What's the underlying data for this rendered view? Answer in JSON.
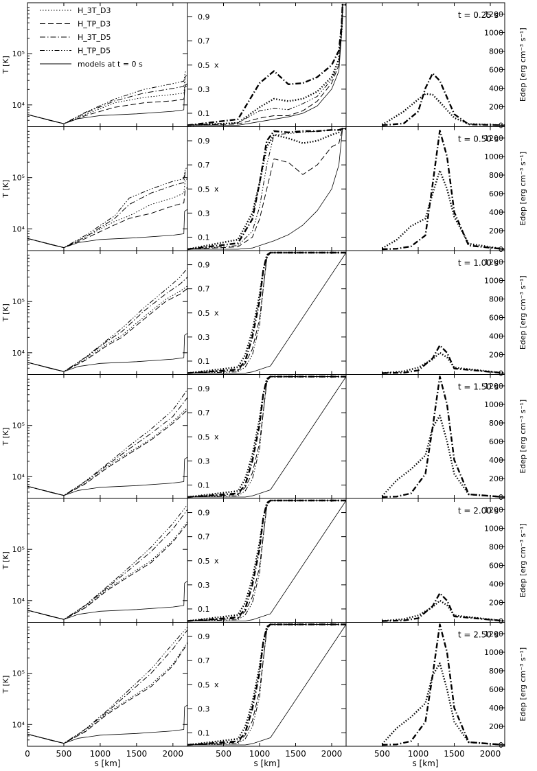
{
  "figure": {
    "y_left_label": "T [K]",
    "y_mid_label": "x",
    "y_right_label": "Edep [erg cm⁻³ s⁻¹]",
    "x_label": "s [km]",
    "x_ticks": [
      "0",
      "500",
      "1000",
      "1500",
      "2000"
    ],
    "x_ticks_mid": [
      "500",
      "1000",
      "1500",
      "2000"
    ],
    "T_ticks": [
      "10⁴",
      "10⁵"
    ],
    "x_fraction_ticks": [
      "0.1",
      "0.3",
      "0.5",
      "0.7",
      "0.9"
    ],
    "edep_ticks": [
      "0",
      "200",
      "400",
      "600",
      "800",
      "1000",
      "1200"
    ]
  },
  "legend": [
    {
      "label": "H_3T_D3",
      "style": "dotted"
    },
    {
      "label": "H_TP_D3",
      "style": "dashed"
    },
    {
      "label": "H_3T_D5",
      "style": "dashdot"
    },
    {
      "label": "H_TP_D5",
      "style": "dashdotdotdot"
    },
    {
      "label": "models at t = 0 s",
      "style": "solid"
    }
  ],
  "panels": [
    {
      "time_label": "t = 0.25 s"
    },
    {
      "time_label": "t = 0.50 s"
    },
    {
      "time_label": "t = 1.00 s"
    },
    {
      "time_label": "t = 1.50 s"
    },
    {
      "time_label": "t = 2.00 s"
    },
    {
      "time_label": "t = 2.50 s"
    }
  ],
  "chart_data": {
    "type": "line",
    "columns": [
      "temperature",
      "ionization_fraction",
      "energy_deposition"
    ],
    "xlabel": "s [km]",
    "xlim": [
      0,
      2200
    ],
    "temperature": {
      "ylabel": "T [K]",
      "scale": "log",
      "ylim": [
        4000,
        900000
      ]
    },
    "ionization_fraction": {
      "ylabel": "x",
      "ylim": [
        0,
        1.0
      ]
    },
    "energy_deposition": {
      "ylabel": "Edep [erg cm⁻³ s⁻¹]",
      "ylim": [
        0,
        1300
      ]
    },
    "initial_model_T": {
      "s": [
        0,
        300,
        500,
        700,
        1000,
        1500,
        2000,
        2150,
        2160,
        2200
      ],
      "T": [
        6500,
        5000,
        4300,
        5400,
        6200,
        6700,
        7500,
        8000,
        22000,
        24000
      ]
    },
    "times": [
      {
        "t": 0.25,
        "T": {
          "s": [
            0,
            500,
            800,
            1200,
            1600,
            2000,
            2150,
            2170,
            2200
          ],
          "H_3T_D3": [
            6500,
            4300,
            6500,
            11000,
            14000,
            16000,
            17000,
            28000,
            30000
          ],
          "H_TP_D3": [
            6500,
            4300,
            6200,
            9000,
            11000,
            12000,
            13000,
            24000,
            26000
          ],
          "H_3T_D5": [
            6500,
            4300,
            7000,
            12000,
            17000,
            21000,
            23000,
            36000,
            38000
          ],
          "H_TP_D5": [
            6500,
            4300,
            7200,
            13000,
            20000,
            26000,
            29000,
            44000,
            46000
          ]
        },
        "x": {
          "s": [
            0,
            700,
            1000,
            1200,
            1400,
            1600,
            1800,
            2000,
            2100,
            2140,
            2150,
            2200
          ],
          "H_3T_D3": [
            0.0,
            0.02,
            0.15,
            0.22,
            0.2,
            0.22,
            0.28,
            0.4,
            0.55,
            0.8,
            1.0,
            1.0
          ],
          "H_TP_D3": [
            0.0,
            0.01,
            0.06,
            0.08,
            0.08,
            0.12,
            0.2,
            0.35,
            0.5,
            0.8,
            1.0,
            1.0
          ],
          "H_3T_D5": [
            0.0,
            0.05,
            0.35,
            0.45,
            0.34,
            0.35,
            0.4,
            0.5,
            0.62,
            0.85,
            1.0,
            1.0
          ],
          "H_TP_D5": [
            0.0,
            0.02,
            0.12,
            0.14,
            0.13,
            0.18,
            0.24,
            0.38,
            0.52,
            0.82,
            1.0,
            1.0
          ],
          "initial": [
            0.0,
            0.0,
            0.03,
            0.05,
            0.07,
            0.1,
            0.16,
            0.3,
            0.45,
            0.78,
            1.0,
            1.0
          ]
        },
        "Edep": {
          "s": [
            500,
            800,
            1000,
            1100,
            1200,
            1300,
            1500,
            1700,
            2200
          ],
          "H_3T_D3": [
            5,
            150,
            280,
            340,
            330,
            250,
            80,
            15,
            0
          ],
          "H_3T_D5": [
            0,
            20,
            150,
            400,
            560,
            480,
            120,
            10,
            0
          ]
        }
      },
      {
        "t": 0.5,
        "T": {
          "s": [
            0,
            500,
            800,
            1200,
            1400,
            1700,
            2000,
            2150,
            2170,
            2200
          ],
          "H_3T_D3": [
            6500,
            4300,
            7000,
            14000,
            18000,
            30000,
            40000,
            50000,
            90000,
            95000
          ],
          "H_TP_D3": [
            6500,
            4300,
            6500,
            12000,
            16000,
            20000,
            28000,
            32000,
            60000,
            64000
          ],
          "H_3T_D5": [
            6500,
            4300,
            7000,
            16000,
            30000,
            50000,
            70000,
            80000,
            130000,
            135000
          ],
          "H_TP_D5": [
            6500,
            4300,
            7500,
            18000,
            40000,
            60000,
            85000,
            95000,
            150000,
            155000
          ]
        },
        "x": {
          "s": [
            0,
            700,
            900,
            1000,
            1100,
            1200,
            1400,
            1600,
            1800,
            2000,
            2100,
            2150,
            2200
          ],
          "H_3T_D3": [
            0.0,
            0.08,
            0.3,
            0.55,
            0.85,
            0.95,
            0.92,
            0.88,
            0.9,
            0.95,
            0.97,
            1.0,
            1.0
          ],
          "H_TP_D3": [
            0.0,
            0.02,
            0.1,
            0.25,
            0.5,
            0.75,
            0.72,
            0.62,
            0.7,
            0.85,
            0.88,
            1.0,
            1.0
          ],
          "H_3T_D5": [
            0.0,
            0.05,
            0.25,
            0.55,
            0.9,
            0.98,
            0.97,
            0.98,
            0.98,
            0.99,
            0.99,
            1.0,
            1.0
          ],
          "H_TP_D5": [
            0.0,
            0.03,
            0.15,
            0.35,
            0.7,
            0.95,
            0.96,
            0.97,
            0.98,
            0.99,
            0.99,
            1.0,
            1.0
          ],
          "initial": [
            0.0,
            0.0,
            0.01,
            0.03,
            0.05,
            0.07,
            0.12,
            0.2,
            0.32,
            0.5,
            0.7,
            1.0,
            1.0
          ]
        },
        "Edep": {
          "s": [
            500,
            700,
            900,
            1100,
            1200,
            1300,
            1400,
            1500,
            1700,
            2200
          ],
          "H_3T_D3": [
            10,
            100,
            250,
            330,
            600,
            850,
            650,
            350,
            60,
            0
          ],
          "H_3T_D5": [
            0,
            5,
            30,
            150,
            700,
            1280,
            1000,
            400,
            40,
            0
          ]
        }
      },
      {
        "t": 1.0,
        "T": {
          "s": [
            0,
            500,
            800,
            1100,
            1300,
            1600,
            1900,
            2100,
            2200
          ],
          "H_3T_D3": [
            6500,
            4300,
            7500,
            15000,
            22000,
            50000,
            110000,
            160000,
            200000
          ],
          "H_TP_D3": [
            6500,
            4300,
            7200,
            14000,
            20000,
            45000,
            100000,
            140000,
            180000
          ],
          "H_3T_D5": [
            6500,
            4300,
            8000,
            17000,
            26000,
            65000,
            140000,
            220000,
            300000
          ],
          "H_TP_D5": [
            6500,
            4300,
            8200,
            18000,
            30000,
            75000,
            170000,
            300000,
            450000
          ]
        },
        "x": {
          "s": [
            0,
            700,
            800,
            900,
            1000,
            1050,
            1100,
            1150,
            2200
          ],
          "H_3T_D3": [
            0.0,
            0.05,
            0.15,
            0.35,
            0.65,
            0.85,
            0.97,
            1.0,
            1.0
          ],
          "H_TP_D3": [
            0.0,
            0.02,
            0.08,
            0.2,
            0.45,
            0.7,
            0.95,
            1.0,
            1.0
          ],
          "H_3T_D5": [
            0.0,
            0.03,
            0.1,
            0.3,
            0.6,
            0.85,
            0.98,
            1.0,
            1.0
          ],
          "H_TP_D5": [
            0.0,
            0.01,
            0.05,
            0.15,
            0.4,
            0.7,
            0.96,
            1.0,
            1.0
          ],
          "initial": [
            0.0,
            0.0,
            0.0,
            0.01,
            0.03,
            0.04,
            0.05,
            0.06,
            1.0
          ]
        },
        "Edep": {
          "s": [
            500,
            800,
            1000,
            1200,
            1300,
            1400,
            1500,
            2200
          ],
          "H_3T_D3": [
            0,
            20,
            60,
            150,
            220,
            170,
            60,
            0
          ],
          "H_3T_D5": [
            0,
            5,
            30,
            160,
            300,
            220,
            50,
            0
          ]
        }
      },
      {
        "t": 1.5,
        "T": {
          "s": [
            0,
            500,
            800,
            1100,
            1400,
            1700,
            2000,
            2200
          ],
          "H_3T_D3": [
            6500,
            4300,
            7500,
            16000,
            30000,
            55000,
            120000,
            220000
          ],
          "H_TP_D3": [
            6500,
            4300,
            7300,
            15000,
            28000,
            52000,
            110000,
            200000
          ],
          "H_3T_D5": [
            6500,
            4300,
            8000,
            17000,
            35000,
            70000,
            150000,
            350000
          ],
          "H_TP_D5": [
            6500,
            4300,
            8200,
            18000,
            40000,
            85000,
            200000,
            500000
          ]
        },
        "x": {
          "s": [
            0,
            700,
            800,
            900,
            1000,
            1050,
            1100,
            1150,
            2200
          ],
          "H_3T_D3": [
            0.0,
            0.05,
            0.15,
            0.35,
            0.65,
            0.85,
            0.97,
            1.0,
            1.0
          ],
          "H_TP_D3": [
            0.0,
            0.02,
            0.08,
            0.2,
            0.45,
            0.7,
            0.95,
            1.0,
            1.0
          ],
          "H_3T_D5": [
            0.0,
            0.03,
            0.1,
            0.3,
            0.6,
            0.85,
            0.98,
            1.0,
            1.0
          ],
          "H_TP_D5": [
            0.0,
            0.01,
            0.05,
            0.15,
            0.4,
            0.7,
            0.96,
            1.0,
            1.0
          ],
          "initial": [
            0.0,
            0.0,
            0.0,
            0.01,
            0.03,
            0.04,
            0.05,
            0.06,
            1.0
          ]
        },
        "Edep": {
          "s": [
            500,
            700,
            900,
            1100,
            1200,
            1300,
            1400,
            1500,
            1700,
            2200
          ],
          "H_3T_D3": [
            10,
            180,
            300,
            450,
            750,
            880,
            600,
            250,
            30,
            0
          ],
          "H_3T_D5": [
            0,
            5,
            40,
            250,
            750,
            1300,
            1000,
            400,
            30,
            0
          ]
        }
      },
      {
        "t": 2.0,
        "T": {
          "s": [
            0,
            500,
            800,
            1100,
            1400,
            1700,
            2000,
            2200
          ],
          "H_3T_D3": [
            6500,
            4300,
            7500,
            17000,
            32000,
            60000,
            150000,
            350000
          ],
          "H_TP_D3": [
            6500,
            4300,
            7300,
            16000,
            30000,
            55000,
            140000,
            320000
          ],
          "H_3T_D5": [
            6500,
            4300,
            8000,
            18000,
            40000,
            90000,
            250000,
            600000
          ],
          "H_TP_D5": [
            6500,
            4300,
            8200,
            19000,
            45000,
            110000,
            320000,
            750000
          ]
        },
        "x": {
          "s": [
            0,
            700,
            800,
            900,
            1000,
            1050,
            1100,
            1150,
            2200
          ],
          "H_3T_D3": [
            0.0,
            0.05,
            0.15,
            0.35,
            0.65,
            0.85,
            0.97,
            1.0,
            1.0
          ],
          "H_TP_D3": [
            0.0,
            0.02,
            0.08,
            0.2,
            0.45,
            0.7,
            0.95,
            1.0,
            1.0
          ],
          "H_3T_D5": [
            0.0,
            0.03,
            0.1,
            0.3,
            0.6,
            0.85,
            0.98,
            1.0,
            1.0
          ],
          "H_TP_D5": [
            0.0,
            0.01,
            0.05,
            0.15,
            0.4,
            0.7,
            0.96,
            1.0,
            1.0
          ],
          "initial": [
            0.0,
            0.0,
            0.0,
            0.01,
            0.03,
            0.04,
            0.05,
            0.06,
            1.0
          ]
        },
        "Edep": {
          "s": [
            500,
            800,
            1000,
            1200,
            1300,
            1400,
            1500,
            2200
          ],
          "H_3T_D3": [
            0,
            20,
            60,
            150,
            220,
            170,
            60,
            0
          ],
          "H_3T_D5": [
            0,
            5,
            30,
            160,
            300,
            220,
            50,
            0
          ]
        }
      },
      {
        "t": 2.5,
        "T": {
          "s": [
            0,
            500,
            800,
            1100,
            1400,
            1700,
            2000,
            2200
          ],
          "H_3T_D3": [
            6500,
            4300,
            7500,
            17000,
            32000,
            60000,
            150000,
            400000
          ],
          "H_TP_D3": [
            6500,
            4300,
            7300,
            16000,
            30000,
            55000,
            140000,
            380000
          ],
          "H_3T_D5": [
            6500,
            4300,
            8000,
            18000,
            42000,
            100000,
            300000,
            700000
          ],
          "H_TP_D5": [
            6500,
            4300,
            8200,
            19000,
            48000,
            120000,
            380000,
            800000
          ]
        },
        "x": {
          "s": [
            0,
            700,
            800,
            900,
            1000,
            1050,
            1100,
            1150,
            2200
          ],
          "H_3T_D3": [
            0.0,
            0.05,
            0.15,
            0.35,
            0.65,
            0.85,
            0.97,
            1.0,
            1.0
          ],
          "H_TP_D3": [
            0.0,
            0.02,
            0.08,
            0.2,
            0.45,
            0.7,
            0.95,
            1.0,
            1.0
          ],
          "H_3T_D5": [
            0.0,
            0.03,
            0.1,
            0.3,
            0.6,
            0.85,
            0.98,
            1.0,
            1.0
          ],
          "H_TP_D5": [
            0.0,
            0.01,
            0.05,
            0.15,
            0.4,
            0.7,
            0.96,
            1.0,
            1.0
          ],
          "initial": [
            0.0,
            0.0,
            0.0,
            0.01,
            0.03,
            0.04,
            0.05,
            0.06,
            1.0
          ]
        },
        "Edep": {
          "s": [
            500,
            700,
            900,
            1100,
            1200,
            1300,
            1400,
            1500,
            1700,
            2200
          ],
          "H_3T_D3": [
            10,
            180,
            300,
            450,
            750,
            880,
            600,
            250,
            30,
            0
          ],
          "H_3T_D5": [
            0,
            5,
            40,
            250,
            750,
            1300,
            1000,
            400,
            30,
            0
          ]
        }
      }
    ]
  }
}
